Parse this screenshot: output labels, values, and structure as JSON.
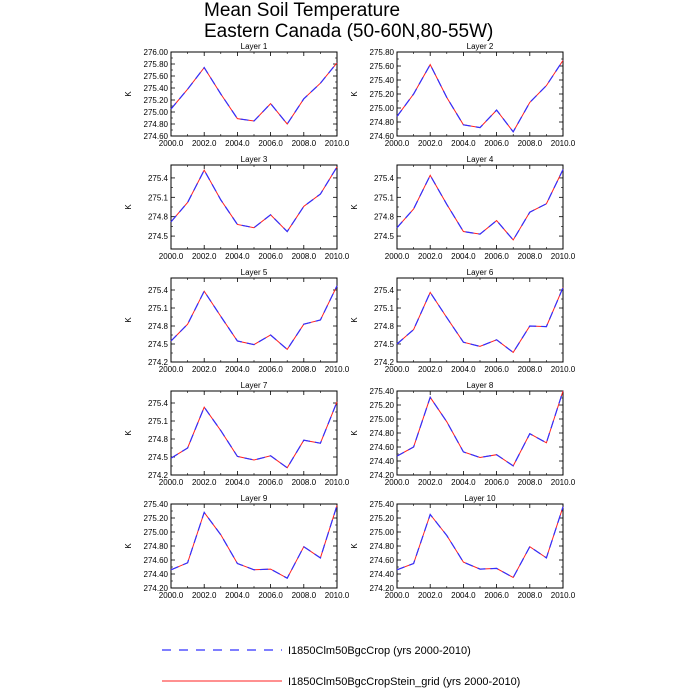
{
  "figure": {
    "title_line1": "Mean Soil Temperature",
    "title_line2": "Eastern Canada (50-60N,80-55W)"
  },
  "legend": [
    {
      "label": "I1850Clm50BgcCrop (yrs 2000-2010)",
      "color": "#3030ff",
      "style": "dashed"
    },
    {
      "label": "I1850Clm50BgcCropStein_grid (yrs 2000-2010)",
      "color": "#ff2020",
      "style": "solid"
    }
  ],
  "chart_data": [
    {
      "type": "line",
      "title": "Layer 1",
      "ylabel": "K",
      "x": [
        2000,
        2001,
        2002,
        2003,
        2004,
        2005,
        2006,
        2007,
        2008,
        2009,
        2010
      ],
      "xlim": [
        2000.0,
        2010.0
      ],
      "xticks": [
        "2000.0",
        "2002.0",
        "2004.0",
        "2006.0",
        "2008.0",
        "2010.0"
      ],
      "ylim": [
        274.6,
        276.0
      ],
      "yticks": [
        "274.60",
        "274.80",
        "275.00",
        "275.20",
        "275.40",
        "275.60",
        "275.80",
        "276.00"
      ],
      "series": [
        {
          "name": "I1850Clm50BgcCrop (yrs 2000-2010)",
          "values": [
            275.05,
            275.38,
            275.74,
            275.3,
            274.89,
            274.85,
            275.14,
            274.8,
            275.22,
            275.48,
            275.82
          ]
        },
        {
          "name": "I1850Clm50BgcCropStein_grid (yrs 2000-2010)",
          "values": [
            275.05,
            275.38,
            275.74,
            275.3,
            274.89,
            274.85,
            275.14,
            274.8,
            275.22,
            275.48,
            275.82
          ]
        }
      ]
    },
    {
      "type": "line",
      "title": "Layer 2",
      "ylabel": "K",
      "x": [
        2000,
        2001,
        2002,
        2003,
        2004,
        2005,
        2006,
        2007,
        2008,
        2009,
        2010
      ],
      "xlim": [
        2000.0,
        2010.0
      ],
      "xticks": [
        "2000.0",
        "2002.0",
        "2004.0",
        "2006.0",
        "2008.0",
        "2010.0"
      ],
      "ylim": [
        274.6,
        275.8
      ],
      "yticks": [
        "274.60",
        "274.80",
        "275.00",
        "275.20",
        "275.40",
        "275.60",
        "275.80"
      ],
      "series": [
        {
          "name": "I1850Clm50BgcCrop (yrs 2000-2010)",
          "values": [
            274.88,
            275.2,
            275.62,
            275.15,
            274.76,
            274.72,
            274.97,
            274.66,
            275.08,
            275.32,
            275.68
          ]
        },
        {
          "name": "I1850Clm50BgcCropStein_grid (yrs 2000-2010)",
          "values": [
            274.88,
            275.2,
            275.62,
            275.15,
            274.76,
            274.72,
            274.97,
            274.66,
            275.08,
            275.32,
            275.68
          ]
        }
      ]
    },
    {
      "type": "line",
      "title": "Layer 3",
      "ylabel": "K",
      "x": [
        2000,
        2001,
        2002,
        2003,
        2004,
        2005,
        2006,
        2007,
        2008,
        2009,
        2010
      ],
      "xlim": [
        2000.0,
        2010.0
      ],
      "xticks": [
        "2000.0",
        "2002.0",
        "2004.0",
        "2006.0",
        "2008.0",
        "2010.0"
      ],
      "ylim": [
        274.3,
        275.6
      ],
      "yticks": [
        "274.5",
        "274.8",
        "275.1",
        "275.4"
      ],
      "series": [
        {
          "name": "I1850Clm50BgcCrop (yrs 2000-2010)",
          "values": [
            274.72,
            275.02,
            275.52,
            275.06,
            274.68,
            274.63,
            274.83,
            274.57,
            274.96,
            275.15,
            275.57
          ]
        },
        {
          "name": "I1850Clm50BgcCropStein_grid (yrs 2000-2010)",
          "values": [
            274.72,
            275.02,
            275.52,
            275.06,
            274.68,
            274.63,
            274.83,
            274.57,
            274.96,
            275.15,
            275.57
          ]
        }
      ]
    },
    {
      "type": "line",
      "title": "Layer 4",
      "ylabel": "K",
      "x": [
        2000,
        2001,
        2002,
        2003,
        2004,
        2005,
        2006,
        2007,
        2008,
        2009,
        2010
      ],
      "xlim": [
        2000.0,
        2010.0
      ],
      "xticks": [
        "2000.0",
        "2002.0",
        "2004.0",
        "2006.0",
        "2008.0",
        "2010.0"
      ],
      "ylim": [
        274.3,
        275.6
      ],
      "yticks": [
        "274.5",
        "274.8",
        "275.1",
        "275.4"
      ],
      "series": [
        {
          "name": "I1850Clm50BgcCrop (yrs 2000-2010)",
          "values": [
            274.63,
            274.92,
            275.44,
            274.99,
            274.57,
            274.53,
            274.74,
            274.44,
            274.87,
            275.0,
            275.53
          ]
        },
        {
          "name": "I1850Clm50BgcCropStein_grid (yrs 2000-2010)",
          "values": [
            274.63,
            274.92,
            275.44,
            274.99,
            274.57,
            274.53,
            274.74,
            274.44,
            274.87,
            275.0,
            275.53
          ]
        }
      ]
    },
    {
      "type": "line",
      "title": "Layer 5",
      "ylabel": "K",
      "x": [
        2000,
        2001,
        2002,
        2003,
        2004,
        2005,
        2006,
        2007,
        2008,
        2009,
        2010
      ],
      "xlim": [
        2000.0,
        2010.0
      ],
      "xticks": [
        "2000.0",
        "2002.0",
        "2004.0",
        "2006.0",
        "2008.0",
        "2010.0"
      ],
      "ylim": [
        274.2,
        275.6
      ],
      "yticks": [
        "274.2",
        "274.5",
        "274.8",
        "275.1",
        "275.4"
      ],
      "series": [
        {
          "name": "I1850Clm50BgcCrop (yrs 2000-2010)",
          "values": [
            274.55,
            274.83,
            275.38,
            274.96,
            274.55,
            274.49,
            274.65,
            274.41,
            274.83,
            274.9,
            275.47
          ]
        },
        {
          "name": "I1850Clm50BgcCropStein_grid (yrs 2000-2010)",
          "values": [
            274.55,
            274.83,
            275.38,
            274.96,
            274.55,
            274.49,
            274.65,
            274.41,
            274.83,
            274.9,
            275.47
          ]
        }
      ]
    },
    {
      "type": "line",
      "title": "Layer 6",
      "ylabel": "K",
      "x": [
        2000,
        2001,
        2002,
        2003,
        2004,
        2005,
        2006,
        2007,
        2008,
        2009,
        2010
      ],
      "xlim": [
        2000.0,
        2010.0
      ],
      "xticks": [
        "2000.0",
        "2002.0",
        "2004.0",
        "2006.0",
        "2008.0",
        "2010.0"
      ],
      "ylim": [
        274.2,
        275.6
      ],
      "yticks": [
        "274.2",
        "274.5",
        "274.8",
        "275.1",
        "275.4"
      ],
      "series": [
        {
          "name": "I1850Clm50BgcCrop (yrs 2000-2010)",
          "values": [
            274.5,
            274.74,
            275.36,
            274.94,
            274.53,
            274.46,
            274.57,
            274.36,
            274.8,
            274.79,
            275.44
          ]
        },
        {
          "name": "I1850Clm50BgcCropStein_grid (yrs 2000-2010)",
          "values": [
            274.5,
            274.74,
            275.36,
            274.94,
            274.53,
            274.46,
            274.57,
            274.36,
            274.8,
            274.79,
            275.44
          ]
        }
      ]
    },
    {
      "type": "line",
      "title": "Layer 7",
      "ylabel": "K",
      "x": [
        2000,
        2001,
        2002,
        2003,
        2004,
        2005,
        2006,
        2007,
        2008,
        2009,
        2010
      ],
      "xlim": [
        2000.0,
        2010.0
      ],
      "xticks": [
        "2000.0",
        "2002.0",
        "2004.0",
        "2006.0",
        "2008.0",
        "2010.0"
      ],
      "ylim": [
        274.2,
        275.6
      ],
      "yticks": [
        "274.2",
        "274.5",
        "274.8",
        "275.1",
        "275.4"
      ],
      "series": [
        {
          "name": "I1850Clm50BgcCrop (yrs 2000-2010)",
          "values": [
            274.48,
            274.65,
            275.33,
            274.94,
            274.51,
            274.45,
            274.52,
            274.32,
            274.78,
            274.73,
            275.42
          ]
        },
        {
          "name": "I1850Clm50BgcCropStein_grid (yrs 2000-2010)",
          "values": [
            274.48,
            274.65,
            275.33,
            274.94,
            274.51,
            274.45,
            274.52,
            274.32,
            274.78,
            274.73,
            275.42
          ]
        }
      ]
    },
    {
      "type": "line",
      "title": "Layer 8",
      "ylabel": "K",
      "x": [
        2000,
        2001,
        2002,
        2003,
        2004,
        2005,
        2006,
        2007,
        2008,
        2009,
        2010
      ],
      "xlim": [
        2000.0,
        2010.0
      ],
      "xticks": [
        "2000.0",
        "2002.0",
        "2004.0",
        "2006.0",
        "2008.0",
        "2010.0"
      ],
      "ylim": [
        274.2,
        275.4
      ],
      "yticks": [
        "274.20",
        "274.40",
        "274.60",
        "274.80",
        "275.00",
        "275.20",
        "275.40"
      ],
      "series": [
        {
          "name": "I1850Clm50BgcCrop (yrs 2000-2010)",
          "values": [
            274.47,
            274.6,
            275.31,
            274.96,
            274.53,
            274.45,
            274.49,
            274.33,
            274.79,
            274.66,
            275.4
          ]
        },
        {
          "name": "I1850Clm50BgcCropStein_grid (yrs 2000-2010)",
          "values": [
            274.47,
            274.6,
            275.31,
            274.96,
            274.53,
            274.45,
            274.49,
            274.33,
            274.79,
            274.66,
            275.4
          ]
        }
      ]
    },
    {
      "type": "line",
      "title": "Layer 9",
      "ylabel": "K",
      "x": [
        2000,
        2001,
        2002,
        2003,
        2004,
        2005,
        2006,
        2007,
        2008,
        2009,
        2010
      ],
      "xlim": [
        2000.0,
        2010.0
      ],
      "xticks": [
        "2000.0",
        "2002.0",
        "2004.0",
        "2006.0",
        "2008.0",
        "2010.0"
      ],
      "ylim": [
        274.2,
        275.4
      ],
      "yticks": [
        "274.20",
        "274.40",
        "274.60",
        "274.80",
        "275.00",
        "275.20",
        "275.40"
      ],
      "series": [
        {
          "name": "I1850Clm50BgcCrop (yrs 2000-2010)",
          "values": [
            274.46,
            274.56,
            275.28,
            274.96,
            274.55,
            274.46,
            274.47,
            274.34,
            274.79,
            274.63,
            275.38
          ]
        },
        {
          "name": "I1850Clm50BgcCropStein_grid (yrs 2000-2010)",
          "values": [
            274.46,
            274.56,
            275.28,
            274.96,
            274.55,
            274.46,
            274.47,
            274.34,
            274.79,
            274.63,
            275.38
          ]
        }
      ]
    },
    {
      "type": "line",
      "title": "Layer 10",
      "ylabel": "K",
      "x": [
        2000,
        2001,
        2002,
        2003,
        2004,
        2005,
        2006,
        2007,
        2008,
        2009,
        2010
      ],
      "xlim": [
        2000.0,
        2010.0
      ],
      "xticks": [
        "2000.0",
        "2002.0",
        "2004.0",
        "2006.0",
        "2008.0",
        "2010.0"
      ],
      "ylim": [
        274.2,
        275.4
      ],
      "yticks": [
        "274.20",
        "274.40",
        "274.60",
        "274.80",
        "275.00",
        "275.20",
        "275.40"
      ],
      "series": [
        {
          "name": "I1850Clm50BgcCrop (yrs 2000-2010)",
          "values": [
            274.46,
            274.55,
            275.25,
            274.95,
            274.57,
            274.47,
            274.48,
            274.35,
            274.79,
            274.63,
            275.36
          ]
        },
        {
          "name": "I1850Clm50BgcCropStein_grid (yrs 2000-2010)",
          "values": [
            274.46,
            274.55,
            275.25,
            274.95,
            274.57,
            274.47,
            274.48,
            274.35,
            274.79,
            274.63,
            275.36
          ]
        }
      ]
    }
  ]
}
